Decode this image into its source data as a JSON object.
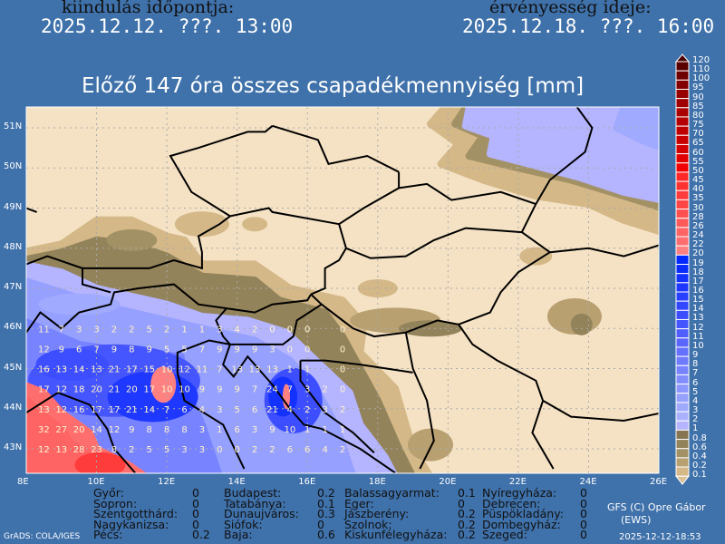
{
  "header": {
    "init_label": "kiindulás időpontja:",
    "init_time": "2025.12.12. ???. 13:00",
    "valid_label": "érvényesség ideje:",
    "valid_time": "2025.12.18. ???. 16:00"
  },
  "title": "Előző 147 óra összes csapadékmennyiség [mm]",
  "map": {
    "lon_ticks": [
      "8E",
      "10E",
      "12E",
      "14E",
      "16E",
      "18E",
      "20E",
      "22E",
      "24E",
      "26E"
    ],
    "lat_ticks": [
      "43N",
      "44N",
      "45N",
      "46N",
      "47N",
      "48N",
      "49N",
      "50N",
      "51N"
    ],
    "background_color": "#f5e2c4",
    "grid_values": {
      "start_lon": 8.5,
      "step_deg": 0.5,
      "rows": [
        {
          "lat": 46.0,
          "values": [
            "11",
            "7",
            "3",
            "3",
            "2",
            "2",
            "5",
            "2",
            "1",
            "1",
            "3",
            "4",
            "2",
            "0",
            "0",
            "0",
            "",
            "0"
          ]
        },
        {
          "lat": 45.5,
          "values": [
            "12",
            "9",
            "6",
            "7",
            "9",
            "8",
            "9",
            "5",
            "5",
            "7",
            "9",
            "9",
            "9",
            "3",
            "0",
            "0",
            "",
            "0"
          ]
        },
        {
          "lat": 45.0,
          "values": [
            "16",
            "13",
            "14",
            "13",
            "21",
            "17",
            "15",
            "10",
            "12",
            "11",
            "7",
            "13",
            "13",
            "13",
            "1",
            "1",
            "",
            "0"
          ]
        },
        {
          "lat": 44.5,
          "values": [
            "17",
            "12",
            "18",
            "20",
            "21",
            "20",
            "17",
            "10",
            "10",
            "9",
            "9",
            "9",
            "7",
            "24",
            "7",
            "3",
            "2",
            "0"
          ]
        },
        {
          "lat": 44.0,
          "values": [
            "13",
            "12",
            "16",
            "17",
            "17",
            "21",
            "14",
            "7",
            "6",
            "4",
            "3",
            "5",
            "6",
            "21",
            "4",
            "2",
            "3",
            "2"
          ]
        },
        {
          "lat": 43.5,
          "values": [
            "32",
            "27",
            "20",
            "14",
            "12",
            "9",
            "8",
            "8",
            "8",
            "3",
            "1",
            "6",
            "3",
            "9",
            "10",
            "1",
            "1",
            "1"
          ]
        },
        {
          "lat": 43.0,
          "values": [
            "12",
            "13",
            "28",
            "23",
            "8",
            "2",
            "5",
            "5",
            "3",
            "3",
            "0",
            "0",
            "2",
            "2",
            "6",
            "6",
            "4",
            "2"
          ]
        }
      ]
    }
  },
  "legend": {
    "labels": [
      "120",
      "110",
      "100",
      "95",
      "90",
      "85",
      "80",
      "75",
      "70",
      "65",
      "60",
      "55",
      "50",
      "45",
      "40",
      "35",
      "30",
      "28",
      "26",
      "24",
      "22",
      "20",
      "19",
      "18",
      "17",
      "16",
      "15",
      "14",
      "13",
      "12",
      "11",
      "10",
      "9",
      "8",
      "7",
      "6",
      "5",
      "4",
      "3",
      "2",
      "1",
      "0.8",
      "0.6",
      "0.4",
      "0.2",
      "0.1"
    ],
    "top_color": "#4a0000",
    "bottom_color": "#dcc096",
    "colors": [
      "#5a0000",
      "#6e0000",
      "#820000",
      "#960000",
      "#a00000",
      "#aa0000",
      "#b40000",
      "#be0000",
      "#c80000",
      "#d20000",
      "#e10000",
      "#f00000",
      "#ff2828",
      "#ff3232",
      "#ff3c3c",
      "#ff4646",
      "#ff5050",
      "#ff5a5a",
      "#ff6464",
      "#ff6e6e",
      "#ff8080",
      "#0028ff",
      "#0a2cff",
      "#1432ff",
      "#1e38ff",
      "#2840ff",
      "#3246ff",
      "#3c4eff",
      "#4656ff",
      "#505eff",
      "#5a66ff",
      "#6470ff",
      "#6e7aff",
      "#7884ff",
      "#828eff",
      "#8c98ff",
      "#96a0ff",
      "#a0aaff",
      "#aab2ff",
      "#b4b4ff",
      "#857552",
      "#93835a",
      "#a39166",
      "#b8a070",
      "#d4b888"
    ]
  },
  "stations": [
    [
      {
        "name": "Győr:",
        "value": "0"
      },
      {
        "name": "Sopron:",
        "value": "0"
      },
      {
        "name": "Szentgotthárd:",
        "value": "0"
      },
      {
        "name": "Nagykanizsa:",
        "value": "0"
      },
      {
        "name": "Pécs:",
        "value": "0.2"
      }
    ],
    [
      {
        "name": "Budapest:",
        "value": "0.2"
      },
      {
        "name": "Tatabánya:",
        "value": "0.1"
      },
      {
        "name": "Dunaujváros:",
        "value": "0.3"
      },
      {
        "name": "Siófok:",
        "value": "0"
      },
      {
        "name": "Baja:",
        "value": "0.6"
      }
    ],
    [
      {
        "name": "Balassagyarmat:",
        "value": "0.1"
      },
      {
        "name": "Eger:",
        "value": "0"
      },
      {
        "name": "Jászberény:",
        "value": "0.2"
      },
      {
        "name": "Szolnok:",
        "value": "0.2"
      },
      {
        "name": "Kiskunfélegyháza:",
        "value": "0.2"
      }
    ],
    [
      {
        "name": "Nyíregyháza:",
        "value": "0"
      },
      {
        "name": "Debrecen:",
        "value": "0"
      },
      {
        "name": "Püspökladány:",
        "value": "0"
      },
      {
        "name": "Dombegyház:",
        "value": "0"
      },
      {
        "name": "Szeged:",
        "value": "0"
      }
    ]
  ],
  "footer": {
    "source": "GrADS: COLA/IGES",
    "credit_line1": "GFS (C) Opre Gábor",
    "credit_line2": "(EWS)",
    "generated": "2025-12-12-18:53"
  }
}
